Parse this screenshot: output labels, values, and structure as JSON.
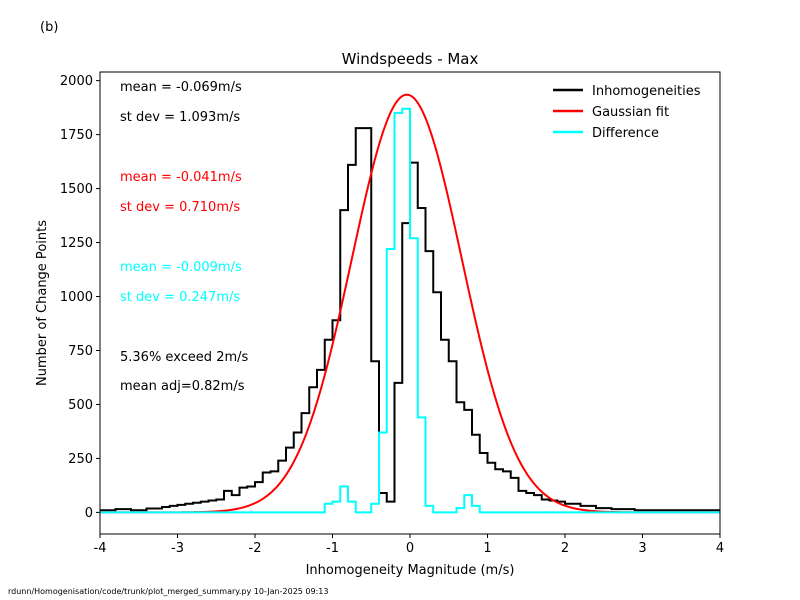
{
  "panel_label": "(b)",
  "footer": "rdunn/Homogenisation/code/trunk/plot_merged_summary.py   10-Jan-2025 09:13",
  "chart_data": {
    "type": "histogram",
    "title": "Windspeeds - Max",
    "xlabel": "Inhomogeneity Magnitude (m/s)",
    "ylabel": "Number of Change Points",
    "xlim": [
      -4,
      4
    ],
    "ylim": [
      -100,
      2040
    ],
    "xticks": [
      "-4",
      "-3",
      "-2",
      "-1",
      "0",
      "1",
      "2",
      "3",
      "4"
    ],
    "yticks": [
      "0",
      "250",
      "500",
      "750",
      "1000",
      "1250",
      "1500",
      "1750",
      "2000"
    ],
    "grid": false,
    "legend_position": "top-right",
    "colors": {
      "inhomogeneities": "#000000",
      "gaussian": "#ff0000",
      "difference": "#00ffff"
    },
    "bin_width": 0.1,
    "series": [
      {
        "name": "Inhomogeneities",
        "color": "#000000",
        "bin_left_edges": [
          -4.0,
          -3.9,
          -3.8,
          -3.7,
          -3.6,
          -3.5,
          -3.4,
          -3.3,
          -3.2,
          -3.1,
          -3.0,
          -2.9,
          -2.8,
          -2.7,
          -2.6,
          -2.5,
          -2.4,
          -2.3,
          -2.2,
          -2.1,
          -2.0,
          -1.9,
          -1.8,
          -1.7,
          -1.6,
          -1.5,
          -1.4,
          -1.3,
          -1.2,
          -1.1,
          -1.0,
          -0.9,
          -0.8,
          -0.7,
          -0.6,
          -0.5,
          -0.4,
          -0.3,
          -0.2,
          -0.1,
          0.0,
          0.1,
          0.2,
          0.3,
          0.4,
          0.5,
          0.6,
          0.7,
          0.8,
          0.9,
          1.0,
          1.1,
          1.2,
          1.3,
          1.4,
          1.5,
          1.6,
          1.7,
          1.8,
          1.9,
          2.0,
          2.1,
          2.2,
          2.3,
          2.4,
          2.5,
          2.6,
          2.7,
          2.8,
          2.9,
          3.0,
          3.1,
          3.2,
          3.3,
          3.4,
          3.5,
          3.6,
          3.7,
          3.8,
          3.9
        ],
        "values": [
          10,
          10,
          15,
          15,
          10,
          10,
          18,
          18,
          25,
          30,
          35,
          40,
          45,
          50,
          55,
          60,
          100,
          80,
          115,
          120,
          140,
          185,
          190,
          240,
          300,
          370,
          460,
          580,
          660,
          800,
          890,
          1400,
          1610,
          1780,
          1780,
          700,
          90,
          50,
          600,
          1340,
          1620,
          1410,
          1210,
          1020,
          800,
          700,
          510,
          475,
          360,
          275,
          230,
          200,
          190,
          160,
          100,
          90,
          80,
          60,
          55,
          50,
          40,
          40,
          30,
          30,
          20,
          20,
          15,
          15,
          15,
          10,
          10,
          10,
          10,
          10,
          10,
          10,
          10,
          10,
          10,
          10
        ]
      },
      {
        "name": "Gaussian fit",
        "color": "#ff0000",
        "type": "line",
        "mean": -0.041,
        "sd": 0.71,
        "peak": 1935,
        "x_range": [
          -4,
          4
        ]
      },
      {
        "name": "Difference",
        "color": "#00ffff",
        "bin_left_edges": [
          -4.0,
          -3.9,
          -3.8,
          -3.7,
          -3.6,
          -3.5,
          -3.4,
          -3.3,
          -3.2,
          -3.1,
          -3.0,
          -2.9,
          -2.8,
          -2.7,
          -2.6,
          -2.5,
          -2.4,
          -2.3,
          -2.2,
          -2.1,
          -2.0,
          -1.9,
          -1.8,
          -1.7,
          -1.6,
          -1.5,
          -1.4,
          -1.3,
          -1.2,
          -1.1,
          -1.0,
          -0.9,
          -0.8,
          -0.7,
          -0.6,
          -0.5,
          -0.4,
          -0.3,
          -0.2,
          -0.1,
          0.0,
          0.1,
          0.2,
          0.3,
          0.4,
          0.5,
          0.6,
          0.7,
          0.8,
          0.9,
          1.0,
          1.1,
          1.2,
          1.3,
          1.4,
          1.5,
          1.6,
          1.7,
          1.8,
          1.9,
          2.0,
          2.1,
          2.2,
          2.3,
          2.4,
          2.5,
          2.6,
          2.7,
          2.8,
          2.9,
          3.0,
          3.1,
          3.2,
          3.3,
          3.4,
          3.5,
          3.6,
          3.7,
          3.8,
          3.9
        ],
        "values": [
          0,
          0,
          0,
          0,
          0,
          0,
          0,
          0,
          0,
          0,
          0,
          0,
          0,
          0,
          0,
          0,
          0,
          0,
          0,
          0,
          0,
          0,
          0,
          0,
          0,
          0,
          0,
          0,
          0,
          40,
          50,
          120,
          50,
          0,
          0,
          40,
          370,
          1220,
          1850,
          1870,
          1270,
          440,
          30,
          0,
          0,
          0,
          20,
          80,
          30,
          0,
          0,
          0,
          0,
          0,
          0,
          0,
          0,
          0,
          0,
          0,
          0,
          0,
          0,
          0,
          0,
          0,
          0,
          0,
          0,
          0,
          0,
          0,
          0,
          0,
          0,
          0,
          0,
          0,
          0,
          0
        ]
      }
    ],
    "annotations": [
      {
        "text": "mean = -0.069m/s",
        "color": "#000000"
      },
      {
        "text": "st dev =  1.093m/s",
        "color": "#000000"
      },
      {
        "text": "mean = -0.041m/s",
        "color": "#ff0000"
      },
      {
        "text": "st dev =  0.710m/s",
        "color": "#ff0000"
      },
      {
        "text": "mean = -0.009m/s",
        "color": "#00ffff"
      },
      {
        "text": "st dev =  0.247m/s",
        "color": "#00ffff"
      },
      {
        "text": "5.36% exceed 2m/s",
        "color": "#000000"
      },
      {
        "text": "mean adj=0.82m/s",
        "color": "#000000"
      }
    ]
  }
}
